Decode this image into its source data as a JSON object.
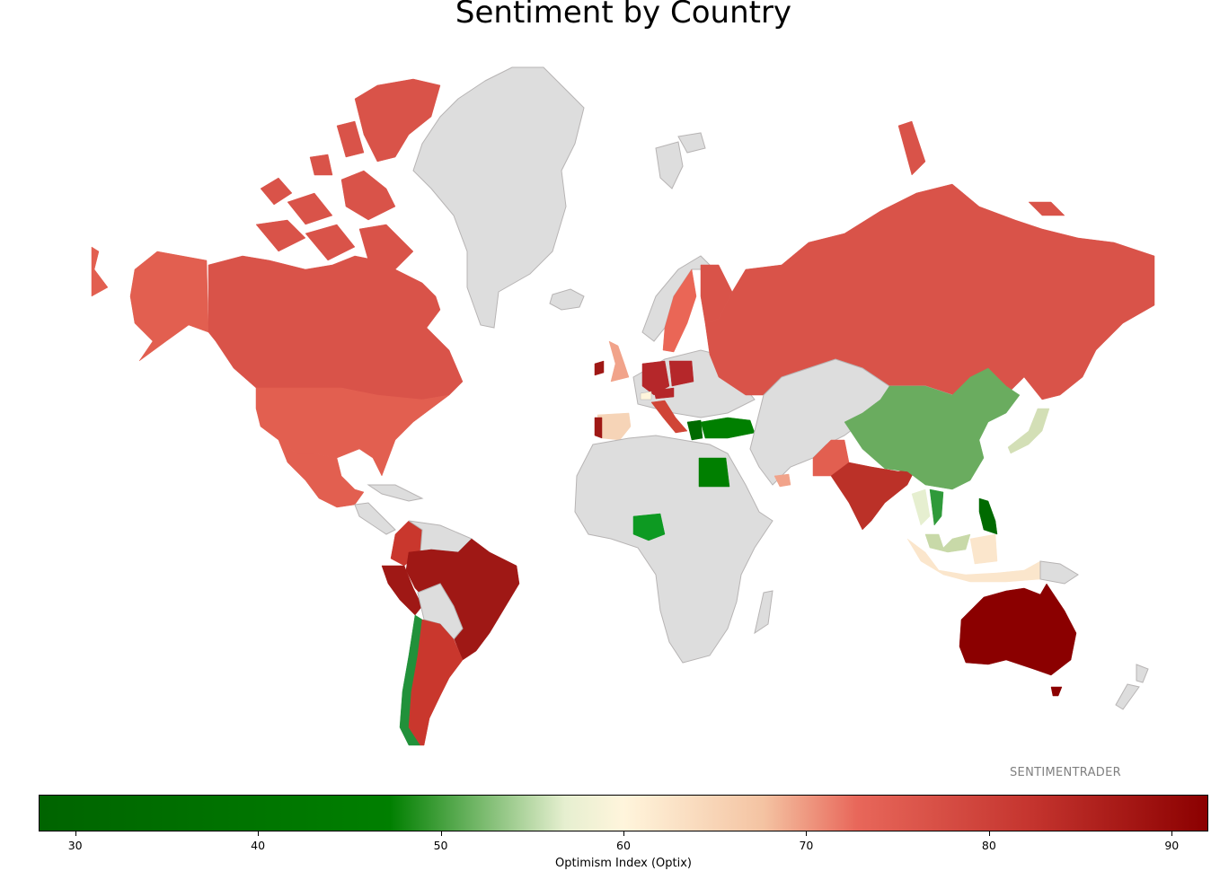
{
  "title": "Sentiment by Country",
  "watermark": "SENTIMENTRADER",
  "colorbar": {
    "label": "Optimism Index (Optix)",
    "min": 28,
    "max": 92,
    "ticks": [
      "30",
      "40",
      "50",
      "60",
      "70",
      "80",
      "90"
    ],
    "stops": [
      "#006400",
      "#007f00",
      "#e6efd0",
      "#fff5dc",
      "#f4c3a2",
      "#e8675a",
      "#c4342e",
      "#8b0000"
    ]
  },
  "colors": {
    "no_data": "#dddddd",
    "border": "#b7b4b4"
  }
}
